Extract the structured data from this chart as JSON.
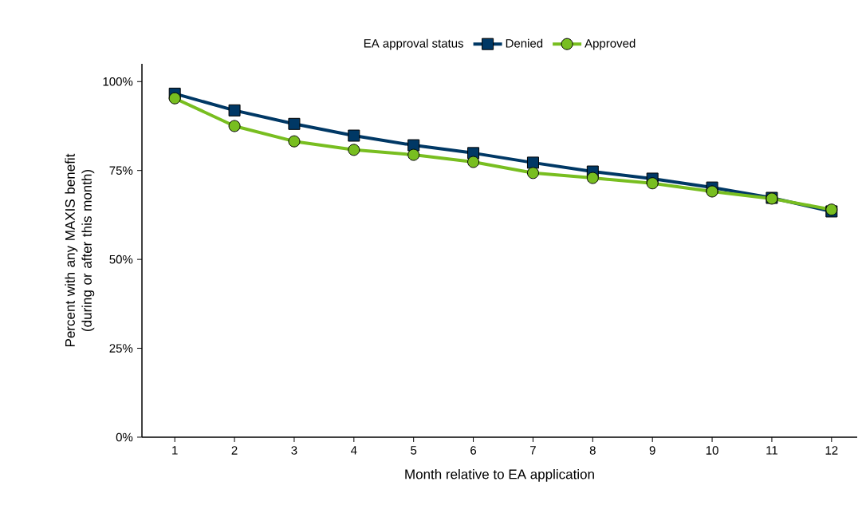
{
  "chart_data": {
    "type": "line",
    "xlabel": "Month relative to EA application",
    "ylabel": "Percent with any MAXIS benefit (during or after this month)",
    "legend_title": "EA approval status",
    "legend": "top",
    "x": [
      1,
      2,
      3,
      4,
      5,
      6,
      7,
      8,
      9,
      10,
      11,
      12
    ],
    "xlim": [
      0.45,
      12.43
    ],
    "xticks": [
      1,
      2,
      3,
      4,
      5,
      6,
      7,
      8,
      9,
      10,
      11,
      12
    ],
    "ylim": [
      0,
      105
    ],
    "yticks": [
      {
        "value": 0,
        "label": "0%"
      },
      {
        "value": 25,
        "label": "25%"
      },
      {
        "value": 50,
        "label": "50%"
      },
      {
        "value": 75,
        "label": "75%"
      },
      {
        "value": 100,
        "label": "100%"
      }
    ],
    "line_style": "solid",
    "series": [
      {
        "name": "Denied",
        "color": "#003865",
        "marker": "square",
        "values": [
          96.6,
          91.9,
          88.1,
          84.8,
          82.1,
          79.9,
          77.2,
          74.7,
          72.7,
          70.2,
          67.3,
          63.5
        ]
      },
      {
        "name": "Approved",
        "color": "#78be20",
        "marker": "circle",
        "values": [
          95.3,
          87.5,
          83.2,
          80.8,
          79.4,
          77.4,
          74.3,
          72.9,
          71.4,
          69.1,
          67.1,
          64.0
        ]
      }
    ]
  }
}
